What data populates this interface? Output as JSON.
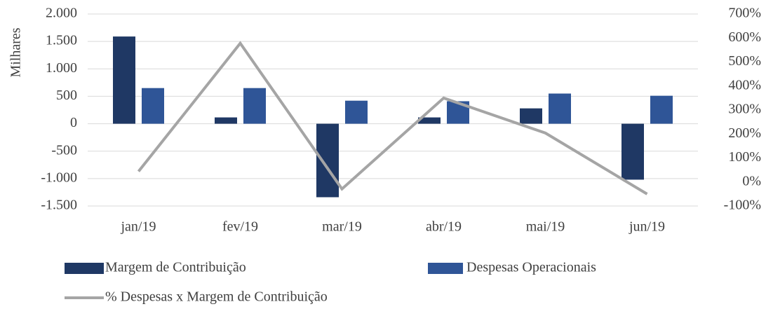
{
  "chart_data": {
    "type": "combo",
    "y_label": "Milhares",
    "categories": [
      "jan/19",
      "fev/19",
      "mar/19",
      "abr/19",
      "mai/19",
      "jun/19"
    ],
    "series": [
      {
        "name": "Margem de Contribuição",
        "type": "bar",
        "color": "#1f3864",
        "values": [
          1590,
          115,
          -1340,
          115,
          280,
          -1020
        ]
      },
      {
        "name": "Despesas Operacionais",
        "type": "bar",
        "color": "#2f5597",
        "values": [
          650,
          650,
          420,
          410,
          550,
          510
        ]
      },
      {
        "name": "% Despesas x Margem de Contribuição",
        "type": "line",
        "axis": "y2",
        "color": "#a5a5a5",
        "values": [
          44,
          578,
          -29,
          350,
          204,
          -50
        ]
      }
    ],
    "ylim": [
      -1500,
      2000
    ],
    "yticks": [
      {
        "value": -1500,
        "label": "-1.500"
      },
      {
        "value": -1000,
        "label": "-1.000"
      },
      -500,
      0,
      500,
      {
        "value": 1000,
        "label": "1.000"
      },
      {
        "value": 1500,
        "label": "1.500"
      },
      {
        "value": 2000,
        "label": "2.000"
      }
    ],
    "y2lim": [
      -100,
      700
    ],
    "y2ticks": [
      {
        "value": -100,
        "label": "-100%"
      },
      {
        "value": 0,
        "label": "0%"
      },
      {
        "value": 100,
        "label": "100%"
      },
      {
        "value": 200,
        "label": "200%"
      },
      {
        "value": 300,
        "label": "300%"
      },
      {
        "value": 400,
        "label": "400%"
      },
      {
        "value": 500,
        "label": "500%"
      },
      {
        "value": 600,
        "label": "600%"
      },
      {
        "value": 700,
        "label": "700%"
      }
    ],
    "grid": true
  }
}
